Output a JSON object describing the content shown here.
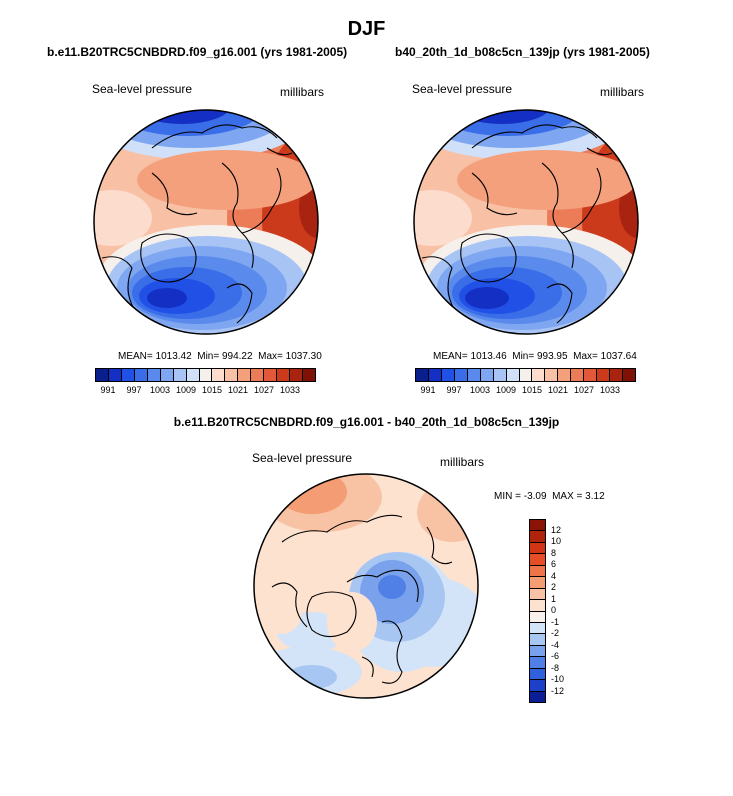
{
  "figure": {
    "title": "DJF"
  },
  "panels": {
    "left": {
      "case": "b.e11.B20TRC5CNBDRD.f09_g16.001 (yrs 1981-2005)",
      "variable": "Sea-level pressure",
      "units": "millibars",
      "mean_label": "MEAN=",
      "mean": "1013.42",
      "min_label": "Min=",
      "min": "994.22",
      "max_label": "Max=",
      "max": "1037.30"
    },
    "right": {
      "case": "b40_20th_1d_b08c5cn_139jp (yrs 1981-2005)",
      "variable": "Sea-level pressure",
      "units": "millibars",
      "mean_label": "MEAN=",
      "mean": "1013.46",
      "min_label": "Min=",
      "min": "993.95",
      "max_label": "Max=",
      "max": "1037.64"
    },
    "diff": {
      "title": "b.e11.B20TRC5CNBDRD.f09_g16.001 - b40_20th_1d_b08c5cn_139jp",
      "variable": "Sea-level pressure",
      "units": "millibars",
      "min_label": "MIN =",
      "min": "-3.09",
      "max_label": "MAX =",
      "max": "3.12"
    }
  },
  "colorbars": {
    "absolute": {
      "tick_labels": [
        "991",
        "997",
        "1003",
        "1009",
        "1015",
        "1021",
        "1027",
        "1033"
      ],
      "colors": [
        "#0a1e8c",
        "#1430c4",
        "#2050e6",
        "#3a6ee8",
        "#5a8aec",
        "#7fa6f0",
        "#a8c4f4",
        "#d0e0f8",
        "#f6f0ec",
        "#fcdccc",
        "#f8c0a4",
        "#f4a07c",
        "#ec7c58",
        "#e25838",
        "#cc3a1c",
        "#a82410",
        "#7e1206"
      ]
    },
    "difference": {
      "tick_labels": [
        "12",
        "10",
        "8",
        "6",
        "4",
        "2",
        "1",
        "0",
        "-1",
        "-2",
        "-4",
        "-6",
        "-8",
        "-10",
        "-12"
      ],
      "colors": [
        "#8a1408",
        "#b0240e",
        "#d23416",
        "#e64e28",
        "#f0744a",
        "#f49c74",
        "#f8c2a4",
        "#fde2d0",
        "#f8f0ea",
        "#d4e4f8",
        "#a8c6f2",
        "#7aa2ec",
        "#5080e6",
        "#3060dc",
        "#1c40c8",
        "#0c1e96"
      ]
    }
  },
  "chart_data": [
    {
      "type": "heatmap",
      "projection": "north-polar-stereographic",
      "title": "b.e11.B20TRC5CNBDRD.f09_g16.001 (yrs 1981-2005)",
      "variable": "Sea-level pressure",
      "units": "millibars",
      "season": "DJF",
      "mean": 1013.42,
      "min": 994.22,
      "max": 1037.3,
      "contour_levels": [
        991,
        994,
        997,
        1000,
        1003,
        1006,
        1009,
        1012,
        1015,
        1018,
        1021,
        1024,
        1027,
        1030,
        1033
      ]
    },
    {
      "type": "heatmap",
      "projection": "north-polar-stereographic",
      "title": "b40_20th_1d_b08c5cn_139jp (yrs 1981-2005)",
      "variable": "Sea-level pressure",
      "units": "millibars",
      "season": "DJF",
      "mean": 1013.46,
      "min": 993.95,
      "max": 1037.64,
      "contour_levels": [
        991,
        994,
        997,
        1000,
        1003,
        1006,
        1009,
        1012,
        1015,
        1018,
        1021,
        1024,
        1027,
        1030,
        1033
      ]
    },
    {
      "type": "heatmap",
      "projection": "north-polar-stereographic",
      "title": "b.e11.B20TRC5CNBDRD.f09_g16.001 - b40_20th_1d_b08c5cn_139jp",
      "variable": "Sea-level pressure",
      "units": "millibars",
      "min": -3.09,
      "max": 3.12,
      "contour_levels": [
        -12,
        -10,
        -8,
        -6,
        -4,
        -2,
        -1,
        0,
        1,
        2,
        4,
        6,
        8,
        10,
        12
      ]
    }
  ]
}
